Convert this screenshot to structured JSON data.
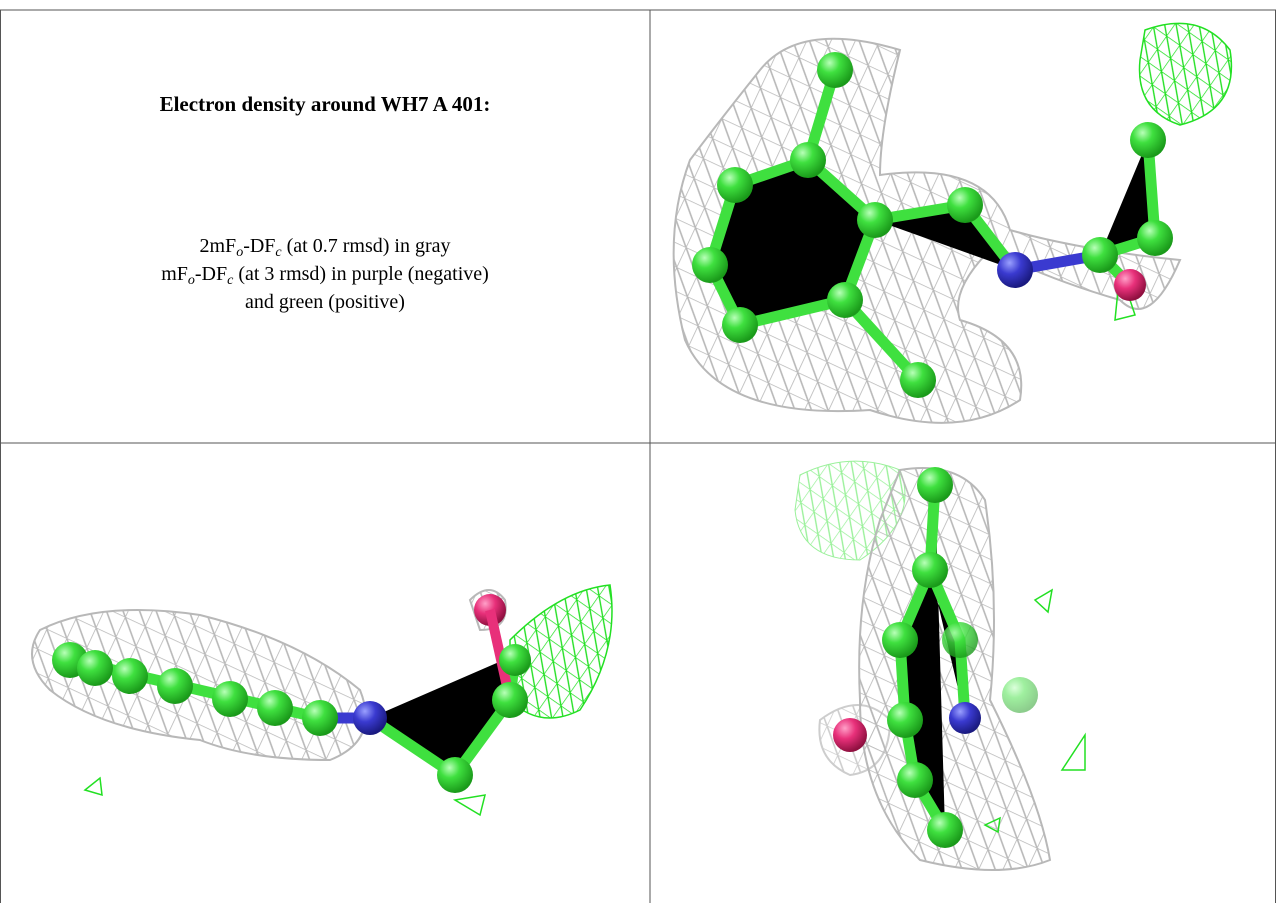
{
  "title": "Electron density around WH7 A 401:",
  "legend": [
    [
      "2mF",
      "o",
      "-DF",
      "c",
      " (at 0.7 rmsd) in gray"
    ],
    [
      "mF",
      "o",
      "-DF",
      "c",
      " (at 3 rmsd) in purple (negative)"
    ],
    [
      "and green (positive)"
    ]
  ]
}
